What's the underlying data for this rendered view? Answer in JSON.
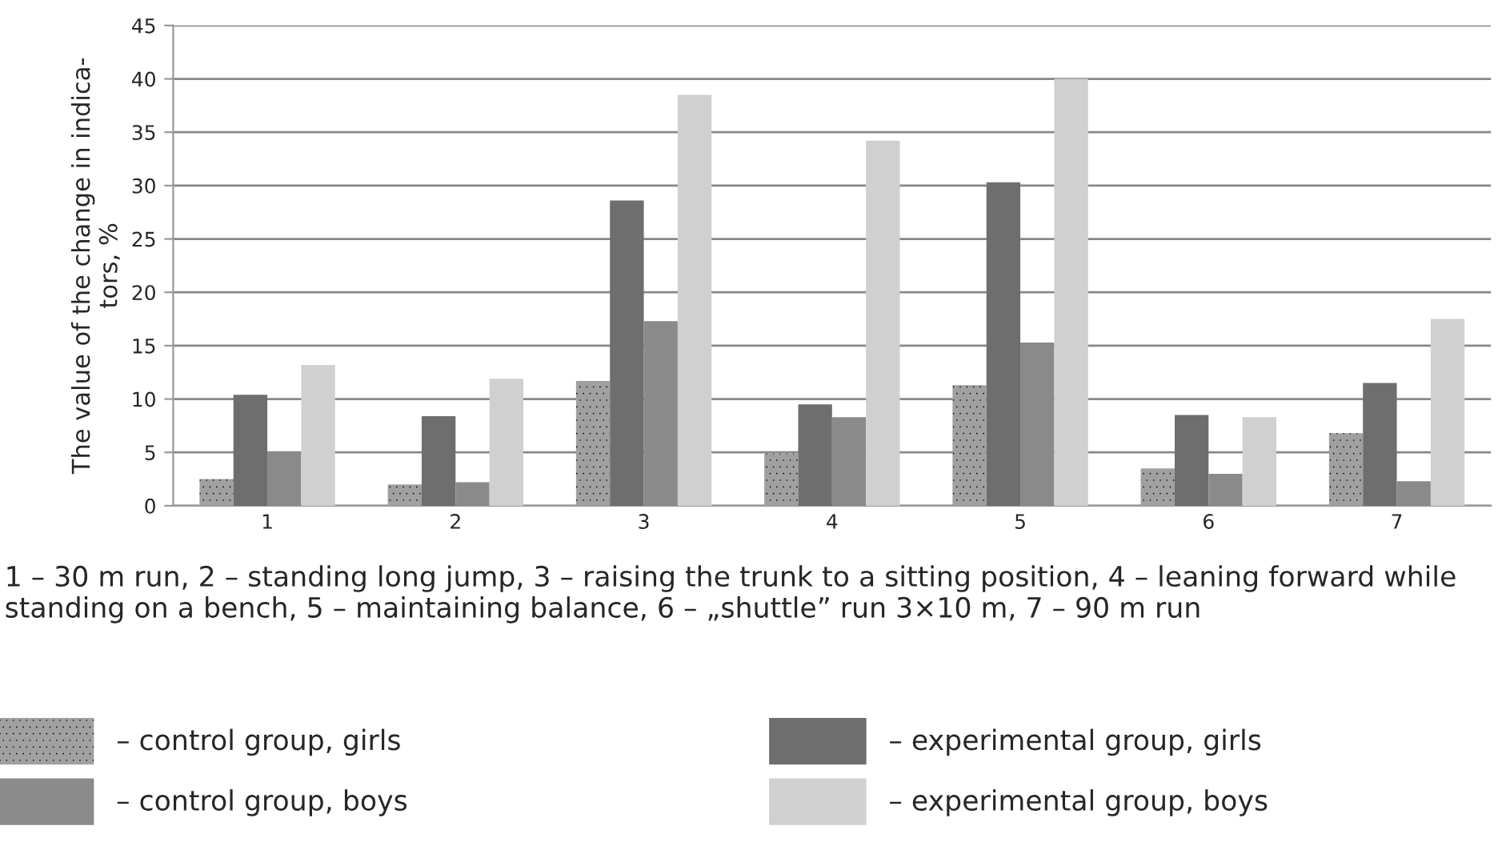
{
  "chart_data": {
    "type": "bar",
    "ylabel": "The value of the change in indica-\ntors, %",
    "categories": [
      "1",
      "2",
      "3",
      "4",
      "5",
      "6",
      "7"
    ],
    "series": [
      {
        "name": "– control group, girls",
        "color": "#a0a0a0",
        "values": [
          2.5,
          2.0,
          11.7,
          4.9,
          11.3,
          3.5,
          6.8
        ]
      },
      {
        "name": "– experimental group, girls",
        "color": "#6e6e6e",
        "values": [
          10.4,
          8.4,
          28.6,
          9.5,
          30.3,
          8.5,
          11.5
        ]
      },
      {
        "name": "– control group, boys",
        "color": "#8a8a8a",
        "values": [
          5.1,
          2.2,
          17.3,
          8.3,
          15.3,
          3.0,
          2.3
        ]
      },
      {
        "name": "– experimental group, boys",
        "color": "#d0d0d0",
        "values": [
          13.2,
          11.9,
          38.5,
          34.2,
          40,
          8.3,
          17.5
        ]
      }
    ],
    "ylim": [
      0,
      45
    ],
    "yticks": [
      0,
      5,
      10,
      15,
      20,
      25,
      30,
      35,
      40,
      45
    ],
    "grid": "y",
    "legend": "bottom",
    "annotations": [
      "1 – 30 m run, 2 – standing long jump, 3 – raising the trunk to a sitting position, 4 – leaning forward while standing on a bench, 5 – maintaining balance, 6 – „shuttle” run 3×10 m, 7 – 90 m run"
    ]
  }
}
